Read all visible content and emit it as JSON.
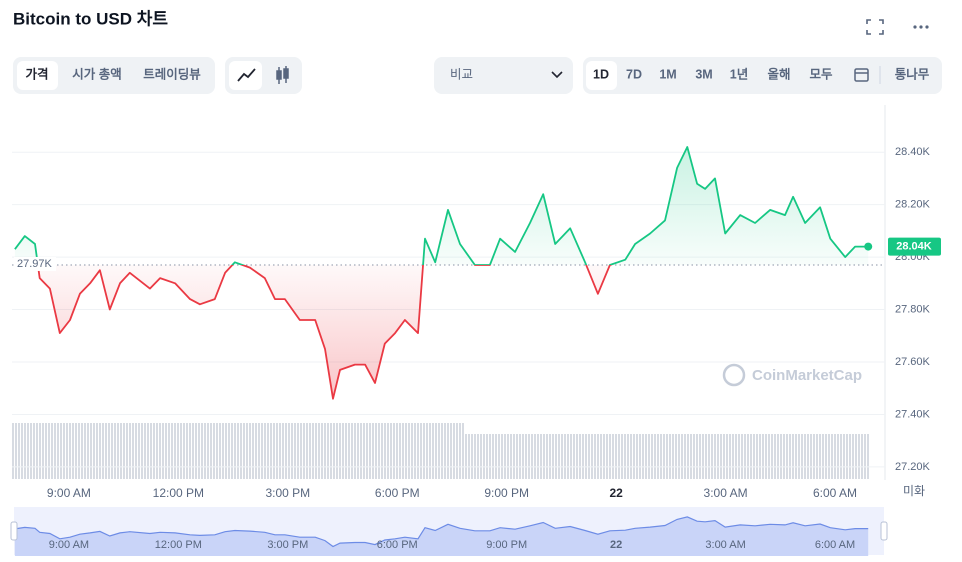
{
  "header": {
    "title": "Bitcoin to USD 차트"
  },
  "toolbar": {
    "views": [
      "가격",
      "시가 총액",
      "트레이딩뷰"
    ],
    "compare": "비교",
    "ranges": [
      "1D",
      "7D",
      "1M",
      "3M",
      "1년",
      "올해",
      "모두"
    ],
    "log": "통나무"
  },
  "watermark": "CoinMarketCap",
  "currency": "미화",
  "chart_data": {
    "type": "line",
    "x": [
      7.52,
      7.79,
      8.07,
      8.2,
      8.48,
      8.75,
      9.03,
      9.3,
      9.58,
      9.85,
      10.12,
      10.4,
      10.67,
      11.22,
      11.5,
      11.91,
      12.32,
      12.59,
      13.0,
      13.28,
      13.55,
      13.96,
      14.37,
      14.65,
      14.92,
      15.33,
      15.75,
      16.02,
      16.24,
      16.43,
      16.84,
      17.12,
      17.39,
      17.66,
      17.94,
      18.21,
      18.57,
      18.76,
      19.04,
      19.39,
      19.72,
      20.13,
      20.54,
      20.82,
      21.23,
      21.64,
      22.0,
      22.33,
      22.74,
      23.15,
      23.5,
      23.83,
      24.25,
      24.52,
      24.93,
      25.34,
      25.67,
      25.95,
      26.22,
      26.44,
      26.71,
      26.99,
      27.4,
      27.81,
      28.22,
      28.63,
      28.85,
      29.18,
      29.59,
      29.87,
      30.28,
      30.55,
      30.91
    ],
    "series": [
      {
        "name": "Price",
        "color": "#16c784",
        "color_below": "#ea3943",
        "values": [
          28.03,
          28.08,
          28.05,
          27.92,
          27.88,
          27.71,
          27.76,
          27.86,
          27.9,
          27.95,
          27.8,
          27.9,
          27.94,
          27.88,
          27.92,
          27.9,
          27.84,
          27.82,
          27.84,
          27.94,
          27.98,
          27.96,
          27.92,
          27.84,
          27.84,
          27.76,
          27.76,
          27.65,
          27.46,
          27.57,
          27.59,
          27.59,
          27.52,
          27.67,
          27.71,
          27.76,
          27.71,
          28.07,
          27.98,
          28.18,
          28.05,
          27.97,
          27.97,
          28.07,
          28.02,
          28.13,
          28.24,
          28.05,
          28.11,
          27.98,
          27.86,
          27.97,
          27.99,
          28.05,
          28.09,
          28.14,
          28.34,
          28.42,
          28.28,
          28.26,
          28.3,
          28.09,
          28.16,
          28.13,
          28.18,
          28.16,
          28.23,
          28.13,
          28.19,
          28.07,
          28.0,
          28.04,
          28.04
        ]
      }
    ],
    "reference": {
      "value": 27.97,
      "label": "27.97K"
    },
    "current": {
      "value": 28.04,
      "label": "28.04K"
    },
    "xlim": [
      7.44,
      31.37
    ],
    "xticks": [
      {
        "value": 9,
        "label": "9:00 AM"
      },
      {
        "value": 12,
        "label": "12:00 PM"
      },
      {
        "value": 15,
        "label": "3:00 PM"
      },
      {
        "value": 18,
        "label": "6:00 PM"
      },
      {
        "value": 21,
        "label": "9:00 PM"
      },
      {
        "value": 24,
        "label": "22"
      },
      {
        "value": 27,
        "label": "3:00 AM"
      },
      {
        "value": 30,
        "label": "6:00 AM"
      }
    ],
    "ylim": [
      27.15,
      28.58
    ],
    "yticks": [
      {
        "value": 27.2,
        "label": "27.20K"
      },
      {
        "value": 27.4,
        "label": "27.40K"
      },
      {
        "value": 27.6,
        "label": "27.60K"
      },
      {
        "value": 27.8,
        "label": "27.80K"
      },
      {
        "value": 28.0,
        "label": "28.00K"
      },
      {
        "value": 28.2,
        "label": "28.20K"
      },
      {
        "value": 28.4,
        "label": "28.40K"
      }
    ],
    "grid": true
  }
}
